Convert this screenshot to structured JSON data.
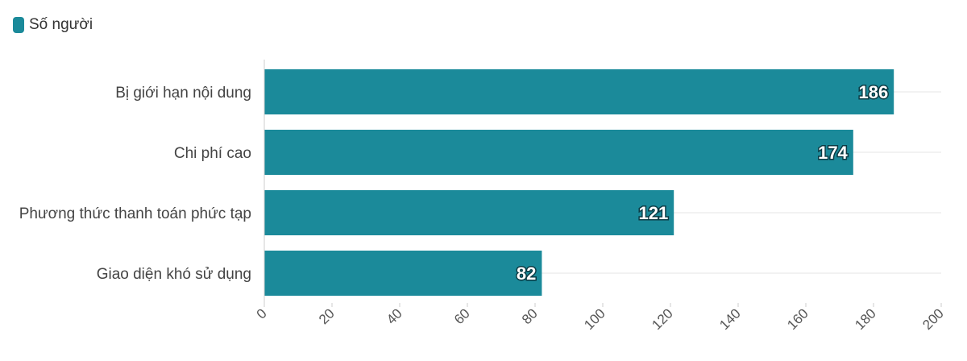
{
  "legend": {
    "label": "Số người",
    "icon": "square-swatch-icon"
  },
  "colors": {
    "bar": "#1b8a9a",
    "grid": "#e6e6e6",
    "axis": "#cccccc"
  },
  "chart_data": {
    "type": "bar",
    "orientation": "horizontal",
    "categories": [
      "Bị giới hạn nội dung",
      "Chi phí cao",
      "Phương thức thanh toán phức tạp",
      "Giao diện khó sử dụng"
    ],
    "series": [
      {
        "name": "Số người",
        "values": [
          186,
          174,
          121,
          82
        ]
      }
    ],
    "xlim": [
      0,
      200
    ],
    "xticks": [
      0,
      20,
      40,
      60,
      80,
      100,
      120,
      140,
      160,
      180,
      200
    ],
    "data_labels": true,
    "grid": true,
    "legend_position": "top-left"
  }
}
